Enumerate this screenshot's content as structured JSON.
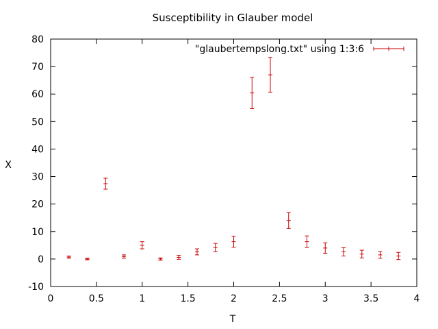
{
  "chart_data": {
    "type": "scatter",
    "title": "Susceptibility in Glauber model",
    "xlabel": "T",
    "ylabel": "X",
    "xlim": [
      0,
      4
    ],
    "ylim": [
      -10,
      80
    ],
    "x_ticks": [
      "0",
      "0.5",
      "1",
      "1.5",
      "2",
      "2.5",
      "3",
      "3.5",
      "4"
    ],
    "y_ticks": [
      "-10",
      "0",
      "10",
      "20",
      "30",
      "40",
      "50",
      "60",
      "70",
      "80"
    ],
    "x_tick_values": [
      0,
      0.5,
      1,
      1.5,
      2,
      2.5,
      3,
      3.5,
      4
    ],
    "y_tick_values": [
      -10,
      0,
      10,
      20,
      30,
      40,
      50,
      60,
      70,
      80
    ],
    "grid": false,
    "legend_position": "top-right",
    "series_color": "#cc0000",
    "series": [
      {
        "name": "\"glaubertempslong.txt\" using 1:3:6",
        "style": "yerrorbars",
        "points": [
          {
            "x": 0.2,
            "y": 0.7,
            "err": 0.4
          },
          {
            "x": 0.4,
            "y": 0.0,
            "err": 0.3
          },
          {
            "x": 0.6,
            "y": 27.4,
            "err": 2.0
          },
          {
            "x": 0.8,
            "y": 0.9,
            "err": 0.6
          },
          {
            "x": 1.0,
            "y": 5.0,
            "err": 1.3
          },
          {
            "x": 1.2,
            "y": 0.0,
            "err": 0.4
          },
          {
            "x": 1.4,
            "y": 0.6,
            "err": 0.7
          },
          {
            "x": 1.6,
            "y": 2.6,
            "err": 1.1
          },
          {
            "x": 1.8,
            "y": 4.2,
            "err": 1.5
          },
          {
            "x": 2.0,
            "y": 6.3,
            "err": 2.0
          },
          {
            "x": 2.2,
            "y": 60.4,
            "err": 5.7
          },
          {
            "x": 2.4,
            "y": 67.0,
            "err": 6.3
          },
          {
            "x": 2.6,
            "y": 14.0,
            "err": 2.9
          },
          {
            "x": 2.8,
            "y": 6.3,
            "err": 2.1
          },
          {
            "x": 3.0,
            "y": 4.0,
            "err": 1.9
          },
          {
            "x": 3.2,
            "y": 2.6,
            "err": 1.5
          },
          {
            "x": 3.4,
            "y": 1.8,
            "err": 1.4
          },
          {
            "x": 3.6,
            "y": 1.5,
            "err": 1.2
          },
          {
            "x": 3.8,
            "y": 1.1,
            "err": 1.3
          }
        ]
      }
    ]
  }
}
